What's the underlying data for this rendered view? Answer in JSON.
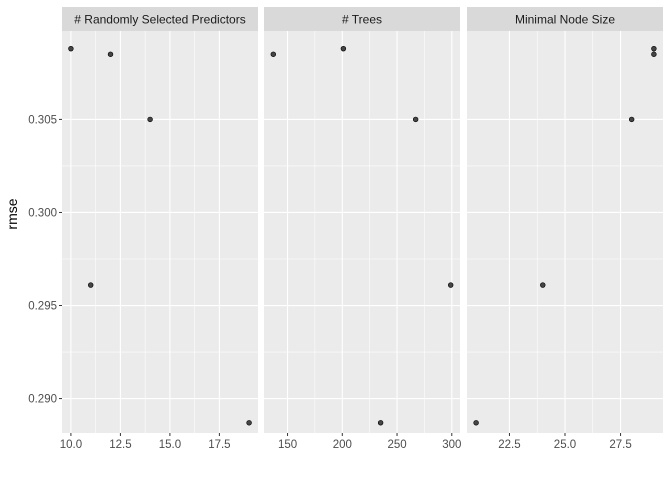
{
  "chart_data": {
    "type": "scatter",
    "ylabel": "rmse",
    "xlabel": "",
    "ylim": [
      0.28815,
      0.30975
    ],
    "y_ticks": [
      0.29,
      0.295,
      0.3,
      0.305
    ],
    "y_tick_labels": [
      "0.290",
      "0.295",
      "0.300",
      "0.305"
    ],
    "grid": true,
    "panels": [
      {
        "name": "# Randomly Selected Predictors",
        "xlim": [
          9.55,
          19.45
        ],
        "x_ticks": [
          10.0,
          12.5,
          15.0,
          17.5
        ],
        "x_tick_labels": [
          "10.0",
          "12.5",
          "15.0",
          "17.5"
        ],
        "points": [
          {
            "x": 10,
            "y": 0.3088
          },
          {
            "x": 11,
            "y": 0.2961
          },
          {
            "x": 12,
            "y": 0.3085
          },
          {
            "x": 14,
            "y": 0.305
          },
          {
            "x": 19,
            "y": 0.2887
          }
        ]
      },
      {
        "name": "# Trees",
        "xlim": [
          128.5,
          307.5
        ],
        "x_ticks": [
          150,
          200,
          250,
          300
        ],
        "x_tick_labels": [
          "150",
          "200",
          "250",
          "300"
        ],
        "points": [
          {
            "x": 137,
            "y": 0.3085
          },
          {
            "x": 201,
            "y": 0.3088
          },
          {
            "x": 235,
            "y": 0.2887
          },
          {
            "x": 267,
            "y": 0.305
          },
          {
            "x": 299,
            "y": 0.2961
          }
        ]
      },
      {
        "name": "Minimal Node Size",
        "xlim": [
          20.59,
          29.41
        ],
        "x_ticks": [
          22.5,
          25.0,
          27.5
        ],
        "x_tick_labels": [
          "22.5",
          "25.0",
          "27.5"
        ],
        "points": [
          {
            "x": 21,
            "y": 0.2887
          },
          {
            "x": 24,
            "y": 0.2961
          },
          {
            "x": 28,
            "y": 0.305
          },
          {
            "x": 29,
            "y": 0.3088
          },
          {
            "x": 29,
            "y": 0.3085
          }
        ]
      }
    ]
  },
  "colors": {
    "panel_bg": "#ebebeb",
    "strip_bg": "#d9d9d9",
    "grid_major": "#ffffff",
    "point_fill": "#333333",
    "point_stroke": "#000000"
  }
}
